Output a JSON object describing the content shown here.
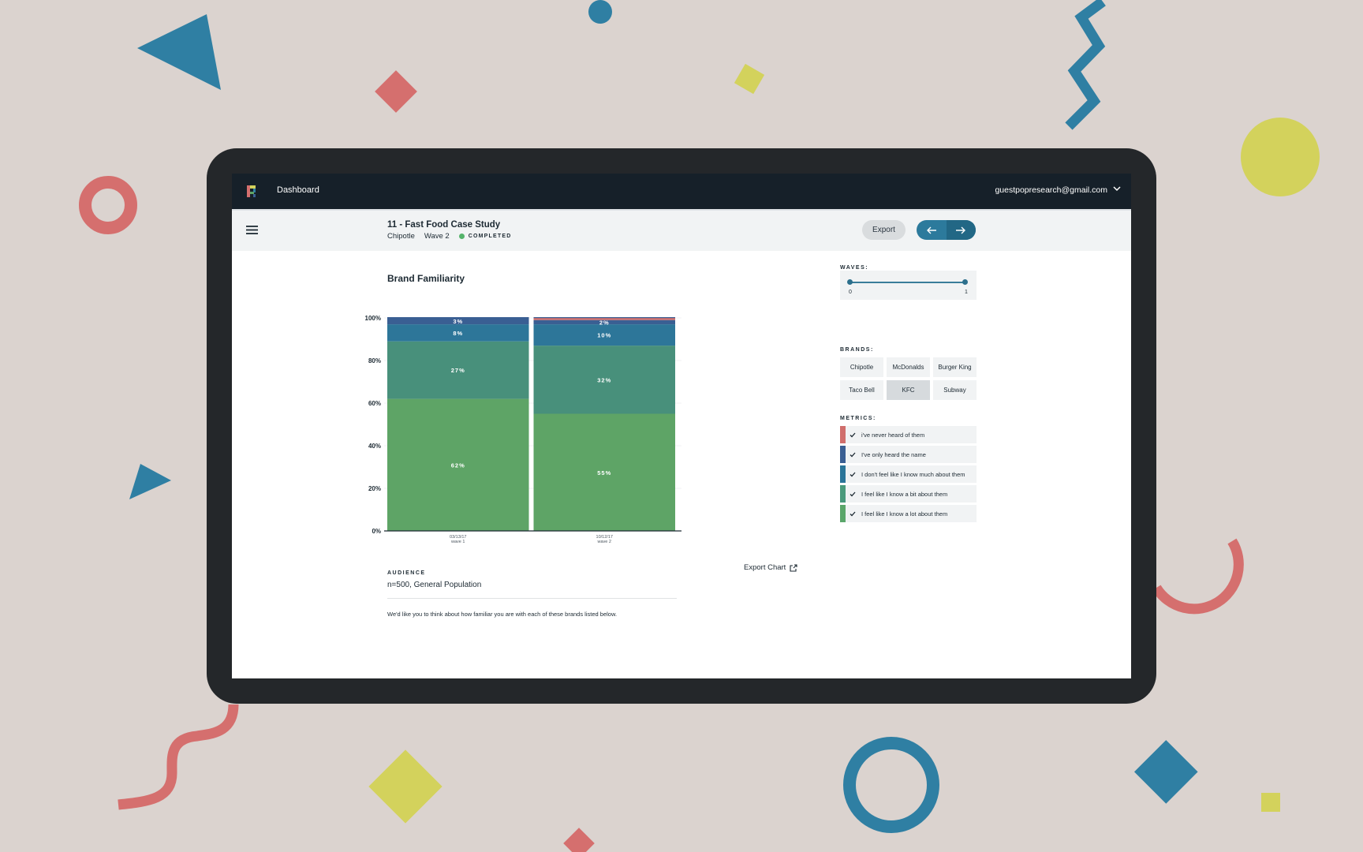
{
  "app": {
    "title": "Dashboard",
    "user_email": "guestpopresearch@gmail.com"
  },
  "study": {
    "title": "11 - Fast Food Case Study",
    "brand": "Chipotle",
    "wave": "Wave 2",
    "status": "COMPLETED"
  },
  "toolbar": {
    "export_label": "Export"
  },
  "chart": {
    "title": "Brand Familiarity",
    "export_label": "Export Chart"
  },
  "audience": {
    "label": "AUDIENCE",
    "value": "n=500, General Population"
  },
  "question_text": "We'd like you to think about how familiar you are with each of these brands listed below.",
  "sidebar": {
    "waves_label": "WAVES:",
    "wave_min": "0",
    "wave_max": "1",
    "brands_label": "BRANDS:",
    "brands": [
      {
        "label": "Chipotle",
        "selected": false
      },
      {
        "label": "McDonalds",
        "selected": false
      },
      {
        "label": "Burger King",
        "selected": false
      },
      {
        "label": "Taco Bell",
        "selected": false
      },
      {
        "label": "KFC",
        "selected": true
      },
      {
        "label": "Subway",
        "selected": false
      }
    ],
    "metrics_label": "METRICS:",
    "metrics": [
      {
        "label": "i've never heard of them",
        "color": "#d06e6c",
        "checked": true
      },
      {
        "label": "I've only heard the name",
        "color": "#3a5f93",
        "checked": true
      },
      {
        "label": "I don't feel like I know much about them",
        "color": "#2b7599",
        "checked": true
      },
      {
        "label": "I feel like I know a bit about them",
        "color": "#4a9a7c",
        "checked": true
      },
      {
        "label": "I feel like I know a lot about them",
        "color": "#5aa66a",
        "checked": true
      }
    ]
  },
  "chart_data": {
    "type": "bar",
    "stacked": true,
    "title": "Brand Familiarity",
    "categories": [
      "03/13/17 wave 1",
      "10/12/17 wave 2"
    ],
    "category_dates": [
      "03/13/17",
      "10/12/17"
    ],
    "category_waves": [
      "wave 1",
      "wave 2"
    ],
    "yticks": [
      "0%",
      "20%",
      "40%",
      "60%",
      "80%",
      "100%"
    ],
    "ylim": [
      0,
      100
    ],
    "series": [
      {
        "name": "I feel like I know a lot about them",
        "color": "#5ea466",
        "values": [
          62,
          55
        ],
        "labels": [
          "62%",
          "55%"
        ]
      },
      {
        "name": "I feel like I know a bit about them",
        "color": "#48907b",
        "values": [
          27,
          32
        ],
        "labels": [
          "27%",
          "32%"
        ]
      },
      {
        "name": "I don't feel like I know much about them",
        "color": "#2d7699",
        "values": [
          8,
          10
        ],
        "labels": [
          "8%",
          "10%"
        ]
      },
      {
        "name": "I've only heard the name",
        "color": "#3a5f93",
        "values": [
          3,
          2
        ],
        "labels": [
          "3%",
          "2%"
        ]
      },
      {
        "name": "i've never heard of them",
        "color": "#d06e6c",
        "values": [
          0,
          1
        ],
        "labels": [
          "",
          ""
        ]
      }
    ]
  }
}
